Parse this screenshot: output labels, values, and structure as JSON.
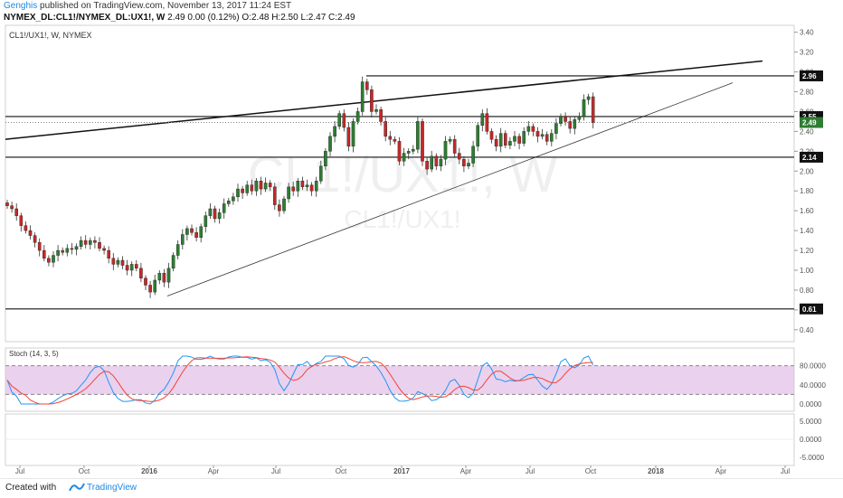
{
  "header": {
    "author": "Genghis",
    "published": "published on TradingView.com, November 13, 2017 11:24 EST",
    "symbol_line": "NYMEX_DL:CL1!/NYMEX_DL:UX1!, W",
    "ohlc": "2.49 0.00 (0.12%) O:2.48 H:2.50 L:2.47 C:2.49"
  },
  "chart_title": "CL1!/UX1!, W, NYMEX",
  "watermark": {
    "big": "CL1!/UX1!, W",
    "small": "CL1!/UX1!"
  },
  "footer": {
    "created": "Created with",
    "brand": "TradingView"
  },
  "colors": {
    "up": "#2e7d32",
    "down": "#c62828",
    "stoch_k": "#2196f3",
    "stoch_d": "#f44336",
    "stoch_band": "#e1bee7",
    "last_price_bg": "#2e7d32"
  },
  "chart_data": {
    "type": "candlestick",
    "title": "CL1!/UX1!, W, NYMEX",
    "y_axis": {
      "ticks": [
        "3.40",
        "3.20",
        "3.00",
        "2.80",
        "2.60",
        "2.40",
        "2.20",
        "2.00",
        "1.80",
        "1.60",
        "1.40",
        "1.20",
        "1.00",
        "0.80",
        "0.60",
        "0.40"
      ],
      "range": [
        0.28,
        3.47
      ]
    },
    "x_axis": {
      "ticks": [
        "Jul",
        "Oct",
        "2016",
        "Apr",
        "Jul",
        "Oct",
        "2017",
        "Apr",
        "Jul",
        "Oct",
        "2018",
        "Apr",
        "Jul"
      ]
    },
    "candle_closes": [
      1.65,
      1.62,
      1.55,
      1.45,
      1.4,
      1.35,
      1.28,
      1.2,
      1.12,
      1.08,
      1.15,
      1.2,
      1.18,
      1.22,
      1.21,
      1.24,
      1.3,
      1.26,
      1.3,
      1.28,
      1.22,
      1.2,
      1.12,
      1.06,
      1.1,
      1.05,
      1.0,
      1.06,
      1.02,
      0.92,
      0.85,
      0.78,
      0.9,
      0.97,
      0.88,
      1.02,
      1.15,
      1.26,
      1.36,
      1.42,
      1.38,
      1.33,
      1.44,
      1.55,
      1.62,
      1.52,
      1.58,
      1.67,
      1.7,
      1.74,
      1.82,
      1.78,
      1.86,
      1.8,
      1.9,
      1.82,
      1.88,
      1.84,
      1.66,
      1.6,
      1.72,
      1.84,
      1.8,
      1.9,
      1.84,
      1.86,
      1.8,
      1.9,
      2.05,
      2.2,
      2.35,
      2.45,
      2.58,
      2.44,
      2.25,
      2.5,
      2.6,
      2.9,
      2.82,
      2.6,
      2.62,
      2.5,
      2.35,
      2.32,
      2.3,
      2.1,
      2.18,
      2.2,
      2.22,
      2.5,
      2.1,
      2.02,
      2.15,
      2.05,
      2.12,
      2.3,
      2.32,
      2.18,
      2.12,
      2.05,
      2.08,
      2.25,
      2.46,
      2.58,
      2.4,
      2.32,
      2.25,
      2.38,
      2.26,
      2.3,
      2.35,
      2.28,
      2.4,
      2.45,
      2.4,
      2.35,
      2.37,
      2.3,
      2.38,
      2.48,
      2.55,
      2.5,
      2.43,
      2.52,
      2.55,
      2.72,
      2.75,
      2.49
    ],
    "horizontal_levels": [
      "2.96",
      "2.55",
      "2.14",
      "0.61"
    ],
    "last_price": "2.49",
    "stochastic": {
      "label": "Stoch (14, 3, 5)",
      "ticks": [
        "80.0000",
        "40.0000",
        "0.0000"
      ],
      "band": [
        20,
        80
      ],
      "k_line": "blue",
      "d_line": "red"
    },
    "macd_ticks": [
      "5.0000",
      "0.0000",
      "-5.0000"
    ]
  }
}
